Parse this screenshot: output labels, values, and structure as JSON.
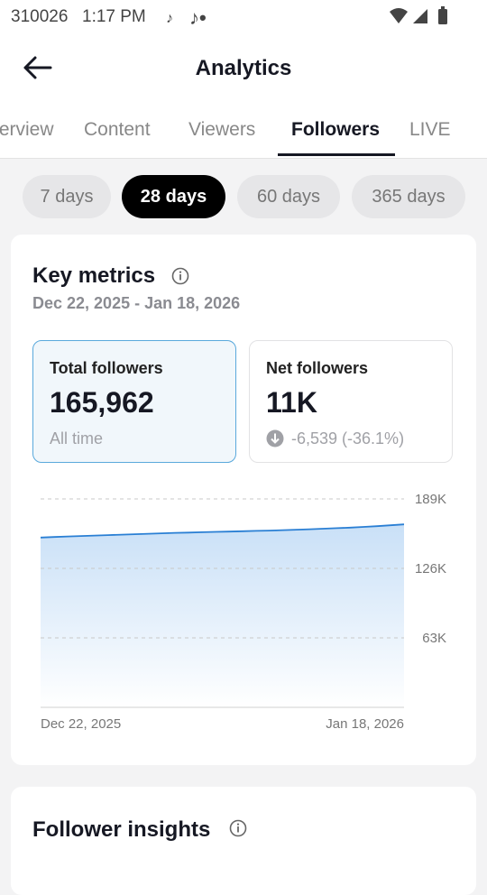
{
  "status_bar": {
    "id": "310026",
    "time": "1:17 PM"
  },
  "header": {
    "title": "Analytics"
  },
  "tabs": {
    "items": [
      "Overview",
      "Content",
      "Viewers",
      "Followers",
      "LIVE"
    ],
    "active": 3
  },
  "ranges": {
    "items": [
      "7 days",
      "28 days",
      "60 days",
      "365 days"
    ],
    "active": 1
  },
  "key_metrics": {
    "title": "Key metrics",
    "date_range": "Dec 22, 2025 - Jan 18, 2026",
    "metrics": [
      {
        "label": "Total followers",
        "value": "165,962",
        "sub": "All time"
      },
      {
        "label": "Net followers",
        "value": "11K",
        "sub": "-6,539 (-36.1%)"
      }
    ]
  },
  "chart_data": {
    "type": "area",
    "color": "#2a7fd4",
    "categories": [
      "Dec 22, 2025",
      null,
      null,
      null,
      null,
      null,
      null,
      null,
      null,
      null,
      null,
      null,
      null,
      null,
      null,
      null,
      null,
      null,
      null,
      null,
      null,
      null,
      null,
      null,
      null,
      null,
      null,
      "Jan 18, 2026"
    ],
    "values": [
      154000,
      154500,
      155000,
      155400,
      155800,
      156200,
      156600,
      157000,
      157400,
      157800,
      158200,
      158500,
      158800,
      159100,
      159400,
      159700,
      160000,
      160300,
      160700,
      161100,
      161500,
      162000,
      162500,
      163000,
      163600,
      164300,
      165100,
      165962
    ],
    "ylim": [
      0,
      189000
    ],
    "yticks": [
      {
        "value": 63000,
        "label": "63K"
      },
      {
        "value": 126000,
        "label": "126K"
      },
      {
        "value": 189000,
        "label": "189K"
      }
    ],
    "grid": true
  },
  "insights": {
    "title": "Follower insights"
  }
}
